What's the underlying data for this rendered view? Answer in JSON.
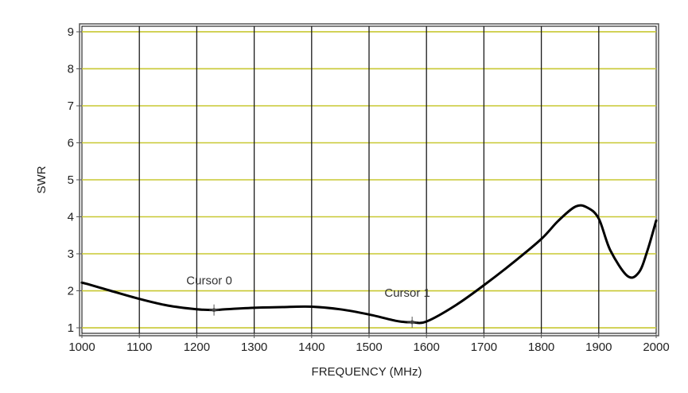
{
  "chart_data": {
    "type": "line",
    "xlabel": "FREQUENCY (MHz)",
    "ylabel": "SWR",
    "xlim": [
      1000,
      2000
    ],
    "ylim": [
      0.85,
      9.15
    ],
    "x_ticks": [
      "1000",
      "1100",
      "1200",
      "1300",
      "1400",
      "1500",
      "1600",
      "1700",
      "1800",
      "1900",
      "2000"
    ],
    "y_ticks": [
      "1",
      "2",
      "3",
      "4",
      "5",
      "6",
      "7",
      "8",
      "9"
    ],
    "grid": true,
    "colors": {
      "line": "#000000",
      "vertical_grid": "#1a1a1a",
      "horizontal_grid": "#c8c832",
      "plot_background": "#ffffff"
    },
    "series": [
      {
        "x": [
          1000,
          1010,
          1050,
          1100,
          1150,
          1200,
          1230,
          1250,
          1300,
          1350,
          1400,
          1450,
          1500,
          1550,
          1575,
          1600,
          1650,
          1700,
          1750,
          1800,
          1830,
          1860,
          1880,
          1900,
          1920,
          1950,
          1970,
          1985,
          2000
        ],
        "y": [
          2.22,
          2.18,
          2.0,
          1.78,
          1.6,
          1.5,
          1.48,
          1.5,
          1.54,
          1.56,
          1.57,
          1.5,
          1.36,
          1.18,
          1.15,
          1.17,
          1.6,
          2.15,
          2.75,
          3.4,
          3.9,
          4.28,
          4.25,
          3.95,
          3.1,
          2.4,
          2.5,
          3.1,
          3.9
        ]
      }
    ],
    "annotations": [
      {
        "text": "Cursor 0",
        "x": 1230,
        "y": 1.48
      },
      {
        "text": "Cursor 1",
        "x": 1575,
        "y": 1.15
      }
    ]
  }
}
